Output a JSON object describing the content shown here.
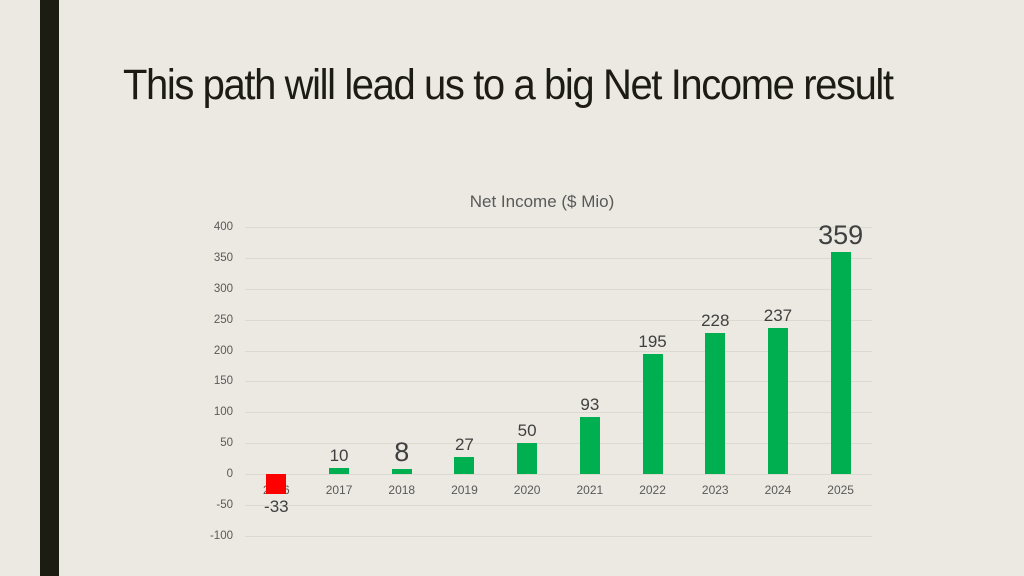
{
  "slide": {
    "title": "This path will lead us to a big Net Income result",
    "accent_bar_color": "#1c1c12",
    "background_color": "#ebe9e2"
  },
  "chart_data": {
    "type": "bar",
    "title": "Net Income ($ Mio)",
    "xlabel": "",
    "ylabel": "",
    "categories": [
      "2016",
      "2017",
      "2018",
      "2019",
      "2020",
      "2021",
      "2022",
      "2023",
      "2024",
      "2025"
    ],
    "values": [
      -33,
      10,
      8,
      27,
      50,
      93,
      195,
      228,
      237,
      359
    ],
    "data_labels": [
      "-33",
      "10",
      "8",
      "27",
      "50",
      "93",
      "195",
      "228",
      "237",
      "359"
    ],
    "emphasized_labels": [
      "8",
      "359"
    ],
    "bar_colors": [
      "#ff0000",
      "#00b050",
      "#00b050",
      "#00b050",
      "#00b050",
      "#00b050",
      "#00b050",
      "#00b050",
      "#00b050",
      "#00b050"
    ],
    "yticks": [
      "400",
      "350",
      "300",
      "250",
      "200",
      "150",
      "100",
      "50",
      "0",
      "-50",
      "-100"
    ],
    "ylim": [
      -100,
      400
    ],
    "grid": true,
    "legend": "none"
  }
}
